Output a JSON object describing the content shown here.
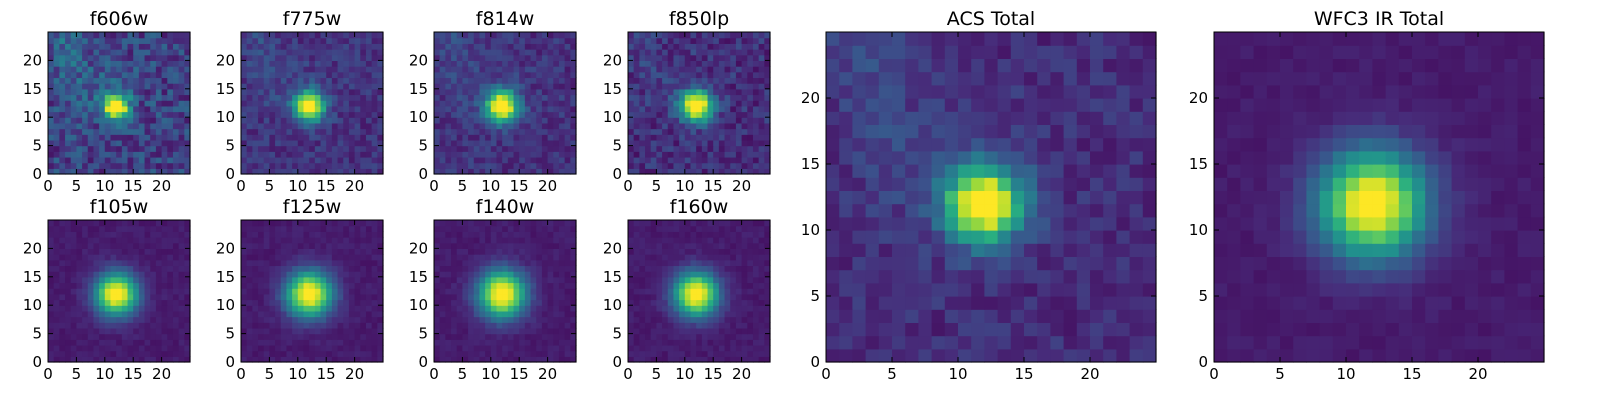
{
  "figure": {
    "type": "heatmap",
    "colormap": "viridis"
  },
  "chart_data": [
    {
      "type": "heatmap",
      "title": "f606w",
      "xlim": [
        0,
        25
      ],
      "ylim": [
        0,
        25
      ],
      "xticks": [
        0,
        5,
        10,
        15,
        20
      ],
      "yticks": [
        0,
        5,
        10,
        15,
        20
      ],
      "grid": "off",
      "center": [
        12,
        12
      ],
      "sigma": 1.5,
      "peak": 1.0,
      "background": 0.2,
      "noise": 0.14,
      "streak": 0.16
    },
    {
      "type": "heatmap",
      "title": "f775w",
      "xlim": [
        0,
        25
      ],
      "ylim": [
        0,
        25
      ],
      "xticks": [
        0,
        5,
        10,
        15,
        20
      ],
      "yticks": [
        0,
        5,
        10,
        15,
        20
      ],
      "grid": "off",
      "center": [
        12,
        12
      ],
      "sigma": 1.8,
      "peak": 1.0,
      "background": 0.15,
      "noise": 0.08,
      "streak": 0.1
    },
    {
      "type": "heatmap",
      "title": "f814w",
      "xlim": [
        0,
        25
      ],
      "ylim": [
        0,
        25
      ],
      "xticks": [
        0,
        5,
        10,
        15,
        20
      ],
      "yticks": [
        0,
        5,
        10,
        15,
        20
      ],
      "grid": "off",
      "center": [
        12,
        12
      ],
      "sigma": 1.9,
      "peak": 1.0,
      "background": 0.15,
      "noise": 0.08,
      "streak": 0.1
    },
    {
      "type": "heatmap",
      "title": "f850lp",
      "xlim": [
        0,
        25
      ],
      "ylim": [
        0,
        25
      ],
      "xticks": [
        0,
        5,
        10,
        15,
        20
      ],
      "yticks": [
        0,
        5,
        10,
        15,
        20
      ],
      "grid": "off",
      "center": [
        12,
        12
      ],
      "sigma": 1.9,
      "peak": 1.0,
      "background": 0.14,
      "noise": 0.1,
      "streak": 0.08
    },
    {
      "type": "heatmap",
      "title": "f105w",
      "xlim": [
        0,
        25
      ],
      "ylim": [
        0,
        25
      ],
      "xticks": [
        0,
        5,
        10,
        15,
        20
      ],
      "yticks": [
        0,
        5,
        10,
        15,
        20
      ],
      "grid": "off",
      "center": [
        12,
        12
      ],
      "sigma": 2.6,
      "peak": 1.0,
      "background": 0.08,
      "noise": 0.03,
      "streak": 0
    },
    {
      "type": "heatmap",
      "title": "f125w",
      "xlim": [
        0,
        25
      ],
      "ylim": [
        0,
        25
      ],
      "xticks": [
        0,
        5,
        10,
        15,
        20
      ],
      "yticks": [
        0,
        5,
        10,
        15,
        20
      ],
      "grid": "off",
      "center": [
        12,
        12
      ],
      "sigma": 2.8,
      "peak": 1.0,
      "background": 0.08,
      "noise": 0.03,
      "streak": 0
    },
    {
      "type": "heatmap",
      "title": "f140w",
      "xlim": [
        0,
        25
      ],
      "ylim": [
        0,
        25
      ],
      "xticks": [
        0,
        5,
        10,
        15,
        20
      ],
      "yticks": [
        0,
        5,
        10,
        15,
        20
      ],
      "grid": "off",
      "center": [
        12,
        12
      ],
      "sigma": 2.9,
      "peak": 1.0,
      "background": 0.08,
      "noise": 0.03,
      "streak": 0
    },
    {
      "type": "heatmap",
      "title": "f160w",
      "xlim": [
        0,
        25
      ],
      "ylim": [
        0,
        25
      ],
      "xticks": [
        0,
        5,
        10,
        15,
        20
      ],
      "yticks": [
        0,
        5,
        10,
        15,
        20
      ],
      "grid": "off",
      "center": [
        12,
        12
      ],
      "sigma": 2.7,
      "peak": 1.0,
      "background": 0.08,
      "noise": 0.03,
      "streak": 0
    },
    {
      "type": "heatmap",
      "title": "ACS Total",
      "xlim": [
        0,
        25
      ],
      "ylim": [
        0,
        25
      ],
      "xticks": [
        0,
        5,
        10,
        15,
        20
      ],
      "yticks": [
        0,
        5,
        10,
        15,
        20
      ],
      "grid": "off",
      "center": [
        12,
        12
      ],
      "sigma": 2.0,
      "peak": 1.0,
      "background": 0.13,
      "noise": 0.07,
      "streak": 0.12
    },
    {
      "type": "heatmap",
      "title": "WFC3 IR Total",
      "xlim": [
        0,
        25
      ],
      "ylim": [
        0,
        25
      ],
      "xticks": [
        0,
        5,
        10,
        15,
        20
      ],
      "yticks": [
        0,
        5,
        10,
        15,
        20
      ],
      "grid": "off",
      "center": [
        12,
        12
      ],
      "sigma": 2.8,
      "peak": 1.0,
      "background": 0.08,
      "noise": 0.025,
      "streak": 0
    }
  ]
}
